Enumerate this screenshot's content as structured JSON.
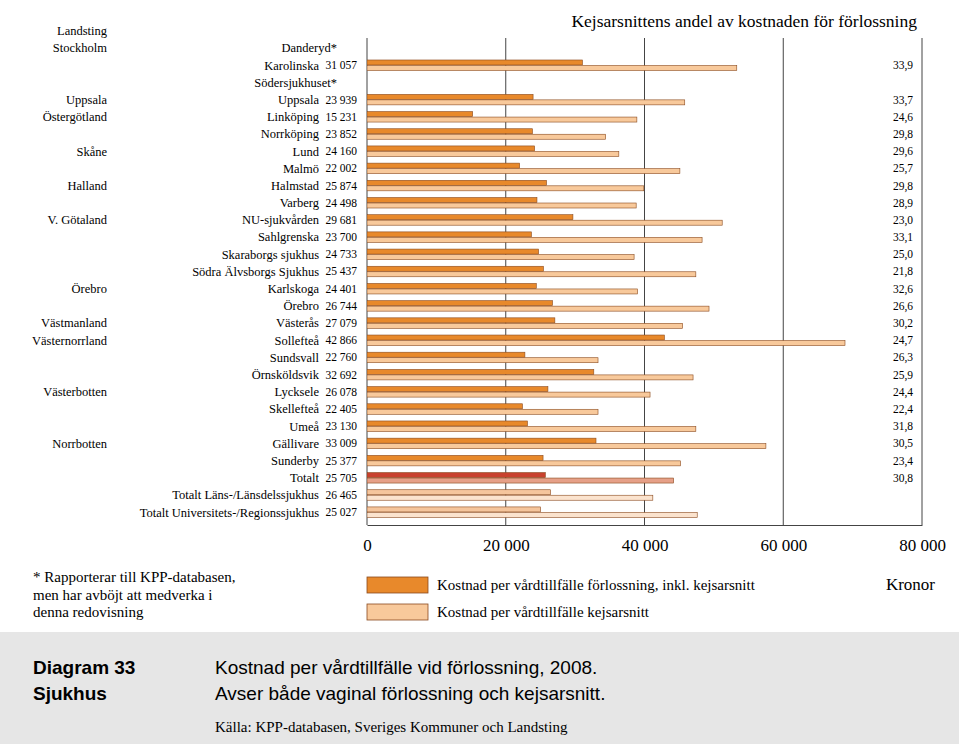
{
  "chart_data": {
    "type": "bar",
    "orientation": "horizontal",
    "title": "Kostnad per vårdtillfälle vid förlossning, 2008.",
    "subtitle": "Avser både vaginal förlossning och kejsarsnitt.",
    "diagram_label": "Diagram 33",
    "diagram_sublabel": "Sjukhus",
    "source": "Källa: KPP-databasen, Sveriges Kommuner och Landsting",
    "footnote": [
      "* Rapporterar till KPP-databasen,",
      "men har avböjt att medverka i",
      "denna redovisning"
    ],
    "x_label": "Kronor",
    "region_header": "Landsting",
    "regions": [
      "Stockholm",
      null,
      null,
      "Uppsala",
      "Östergötland",
      null,
      "Skåne",
      null,
      "Halland",
      null,
      "V. Götaland",
      null,
      null,
      null,
      "Örebro",
      null,
      "Västmanland",
      "Västernorrland",
      null,
      null,
      "Västerbotten",
      null,
      null,
      "Norrbotten",
      null,
      null,
      null,
      null
    ],
    "categories": [
      "Danderyd*",
      "Karolinska",
      "Södersjukhuset*",
      "Uppsala",
      "Linköping",
      "Norrköping",
      "Lund",
      "Malmö",
      "Halmstad",
      "Varberg",
      "NU-sjukvården",
      "Sahlgrenska",
      "Skaraborgs sjukhus",
      "Södra Älvsborgs Sjukhus",
      "Karlskoga",
      "Örebro",
      "Västerås",
      "Sollefteå",
      "Sundsvall",
      "Örnsköldsvik",
      "Lycksele",
      "Skellefteå",
      "Umeå",
      "Gällivare",
      "Sunderby",
      "Totalt",
      "Totalt Läns-/Länsdelssjukhus",
      "Totalt Universitets-/Regionssjukhus"
    ],
    "series": [
      {
        "name": "Kostnad per vårdtillfälle förlossning, inkl. kejsarsnitt",
        "color": "#e8892b",
        "colors": [
          "#e8892b",
          "#e8892b",
          "#e8892b",
          "#e8892b",
          "#e8892b",
          "#e8892b",
          "#e8892b",
          "#e8892b",
          "#e8892b",
          "#e8892b",
          "#e8892b",
          "#e8892b",
          "#e8892b",
          "#e8892b",
          "#e8892b",
          "#e8892b",
          "#e8892b",
          "#e8892b",
          "#e8892b",
          "#e8892b",
          "#e8892b",
          "#e8892b",
          "#e8892b",
          "#e8892b",
          "#e8892b",
          "#c8412e",
          "#f5c59c",
          "#f5c59c"
        ],
        "values": [
          null,
          31057,
          null,
          23939,
          15231,
          23852,
          24160,
          22002,
          25874,
          24498,
          29681,
          23700,
          24733,
          25437,
          24401,
          26744,
          27079,
          42866,
          22760,
          32692,
          26078,
          22405,
          23130,
          33009,
          25377,
          25705,
          26465,
          25027
        ],
        "value_labels": [
          null,
          "31 057",
          null,
          "23 939",
          "15 231",
          "23 852",
          "24 160",
          "22 002",
          "25 874",
          "24 498",
          "29 681",
          "23 700",
          "24 733",
          "25 437",
          "24 401",
          "26 744",
          "27 079",
          "42 866",
          "22 760",
          "32 692",
          "26 078",
          "22 405",
          "23 130",
          "33 009",
          "25 377",
          "25 705",
          "26 465",
          "25 027"
        ]
      },
      {
        "name": "Kostnad per vårdtillfälle kejsarsnitt",
        "color": "#f8c99b",
        "colors": [
          "#f8c99b",
          "#f8c99b",
          "#f8c99b",
          "#f8c99b",
          "#f8c99b",
          "#f8c99b",
          "#f8c99b",
          "#f8c99b",
          "#f8c99b",
          "#f8c99b",
          "#f8c99b",
          "#f8c99b",
          "#f8c99b",
          "#f8c99b",
          "#f8c99b",
          "#f8c99b",
          "#f8c99b",
          "#f8c99b",
          "#f8c99b",
          "#f8c99b",
          "#f8c99b",
          "#f8c99b",
          "#f8c99b",
          "#f8c99b",
          "#f8c99b",
          "#e6a088",
          "#fbe3ce",
          "#fbe3ce"
        ],
        "values": [
          null,
          53300,
          null,
          45800,
          38900,
          34400,
          36300,
          45100,
          39900,
          38800,
          51200,
          48300,
          38500,
          47400,
          39000,
          49300,
          45500,
          68900,
          33300,
          47000,
          40800,
          33300,
          47400,
          57500,
          45200,
          44200,
          41200,
          47600
        ]
      }
    ],
    "share_title": "Kejsarsnittens andel av kostnaden för förlossning",
    "share_values": [
      null,
      33.9,
      null,
      33.7,
      24.6,
      29.8,
      29.6,
      25.7,
      29.8,
      28.9,
      23.0,
      33.1,
      25.0,
      21.8,
      32.6,
      26.6,
      30.2,
      24.7,
      26.3,
      25.9,
      24.4,
      22.4,
      31.8,
      30.5,
      23.4,
      30.8,
      null,
      null
    ],
    "share_value_labels": [
      null,
      "33,9",
      null,
      "33,7",
      "24,6",
      "29,8",
      "29,6",
      "25,7",
      "29,8",
      "28,9",
      "23,0",
      "33,1",
      "25,0",
      "21,8",
      "32,6",
      "26,6",
      "30,2",
      "24,7",
      "26,3",
      "25,9",
      "24,4",
      "22,4",
      "31,8",
      "30,5",
      "23,4",
      "30,8",
      null,
      null
    ],
    "xlim": [
      0,
      80000
    ],
    "xticks": [
      0,
      {
        "value": 20000,
        "label": "20 000"
      },
      {
        "value": 40000,
        "label": "40 000"
      },
      {
        "value": 60000,
        "label": "60 000"
      },
      {
        "value": 80000,
        "label": "80 000"
      }
    ],
    "grid": true,
    "legend": "bottom",
    "data_labels": true
  }
}
